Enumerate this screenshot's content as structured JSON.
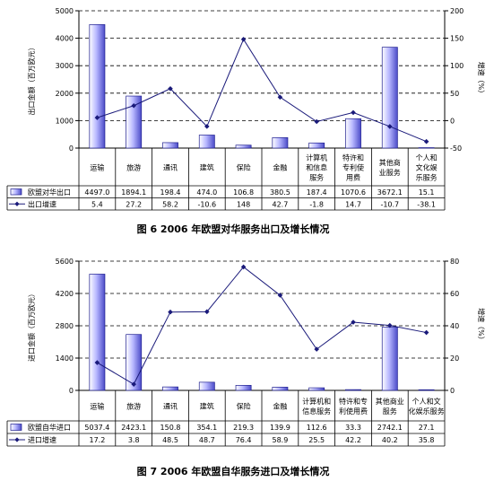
{
  "chart_data": [
    {
      "type": "bar",
      "caption": "图 6    2006 年欧盟对华服务出口及增长情况",
      "ylabel": "出口金额（百万欧元）",
      "y2label": "增速（%）",
      "ylim": [
        0,
        5000
      ],
      "yticks": [
        0,
        1000,
        2000,
        3000,
        4000,
        5000
      ],
      "y2lim": [
        -50,
        200
      ],
      "y2ticks": [
        -50,
        0,
        50,
        100,
        150,
        200
      ],
      "categories": [
        "运输",
        "旅游",
        "通讯",
        "建筑",
        "保险",
        "金融",
        "计算机和信息服务",
        "特许和专利使用费",
        "其他商业服务",
        "个人和文化娱乐服务"
      ],
      "category_lines": [
        [
          "运输"
        ],
        [
          "旅游"
        ],
        [
          "通讯"
        ],
        [
          "建筑"
        ],
        [
          "保险"
        ],
        [
          "金融"
        ],
        [
          "计算机",
          "和信息",
          "服务"
        ],
        [
          "特许和",
          "专利使",
          "用费"
        ],
        [
          "其他商",
          "业服务"
        ],
        [
          "个人和",
          "文化娱",
          "乐服务"
        ]
      ],
      "series": [
        {
          "name": "欧盟对华出口",
          "kind": "bar",
          "axis": "left",
          "values": [
            4497.0,
            1894.1,
            198.4,
            474.0,
            106.8,
            380.5,
            187.4,
            1070.6,
            3672.1,
            15.1
          ],
          "labels": [
            "4497.0",
            "1894.1",
            "198.4",
            "474.0",
            "106.8",
            "380.5",
            "187.4",
            "1070.6",
            "3672.1",
            "15.1"
          ]
        },
        {
          "name": "出口增速",
          "kind": "line",
          "axis": "right",
          "values": [
            5.4,
            27.2,
            58.2,
            -10.6,
            148,
            42.7,
            -1.8,
            14.7,
            -10.7,
            -38.1
          ],
          "labels": [
            "5.4",
            "27.2",
            "58.2",
            "-10.6",
            "148",
            "42.7",
            "-1.8",
            "14.7",
            "-10.7",
            "-38.1"
          ]
        }
      ]
    },
    {
      "type": "bar",
      "caption": "图 7    2006 年欧盟自华服务进口及增长情况",
      "ylabel": "进口金额（百万欧元）",
      "y2label": "增速（%）",
      "ylim": [
        0,
        5600
      ],
      "yticks": [
        0,
        1400,
        2800,
        4200,
        5600
      ],
      "y2lim": [
        0,
        80
      ],
      "y2ticks": [
        0,
        20,
        40,
        60,
        80
      ],
      "categories": [
        "运输",
        "旅游",
        "通讯",
        "建筑",
        "保险",
        "金融",
        "计算机和信息服务",
        "特许和专利使用费",
        "其他商业服务",
        "个人和文化娱乐服务"
      ],
      "category_lines": [
        [
          "运输"
        ],
        [
          "旅游"
        ],
        [
          "通讯"
        ],
        [
          "建筑"
        ],
        [
          "保险"
        ],
        [
          "金融"
        ],
        [
          "计算机和",
          "信息服务"
        ],
        [
          "特许和专",
          "利使用费"
        ],
        [
          "其他商业",
          "服务"
        ],
        [
          "个人和文",
          "化娱乐服务"
        ]
      ],
      "series": [
        {
          "name": "欧盟自华进口",
          "kind": "bar",
          "axis": "left",
          "values": [
            5037.4,
            2423.1,
            150.8,
            354.1,
            219.3,
            139.9,
            112.6,
            33.3,
            2742.1,
            27.1
          ],
          "labels": [
            "5037.4",
            "2423.1",
            "150.8",
            "354.1",
            "219.3",
            "139.9",
            "112.6",
            "33.3",
            "2742.1",
            "27.1"
          ]
        },
        {
          "name": "进口增速",
          "kind": "line",
          "axis": "right",
          "values": [
            17.2,
            3.8,
            48.5,
            48.7,
            76.4,
            58.9,
            25.5,
            42.2,
            40.2,
            35.8
          ],
          "labels": [
            "17.2",
            "3.8",
            "48.5",
            "48.7",
            "76.4",
            "58.9",
            "25.5",
            "42.2",
            "40.2",
            "35.8"
          ]
        }
      ]
    }
  ],
  "colors": {
    "bar_fill": "#ccccff",
    "bar_edge": "#1f1f8f",
    "line": "#1a1a7a",
    "grid": "#000000"
  }
}
